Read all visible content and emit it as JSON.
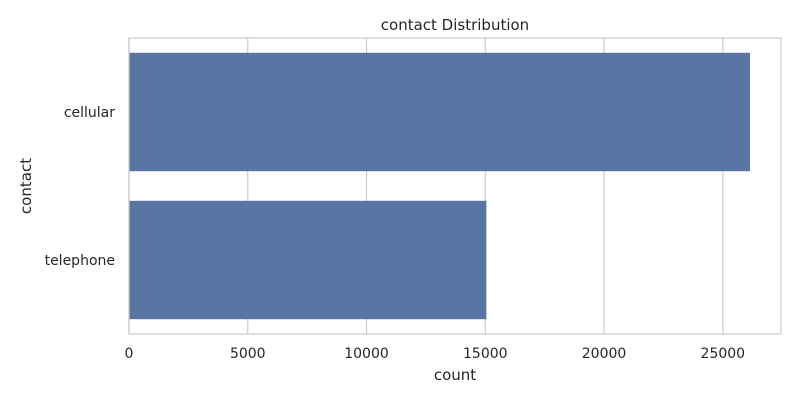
{
  "chart_data": {
    "type": "bar",
    "orientation": "horizontal",
    "title": "contact Distribution",
    "xlabel": "count",
    "ylabel": "contact",
    "categories": [
      "cellular",
      "telephone"
    ],
    "values": [
      26144,
      15044
    ],
    "xlim": [
      0,
      27450
    ],
    "xticks": [
      0,
      5000,
      10000,
      15000,
      20000,
      25000
    ],
    "grid": true,
    "bar_color": "#5875a4",
    "grid_color": "#cccccc",
    "spine_color": "#cccccc"
  }
}
